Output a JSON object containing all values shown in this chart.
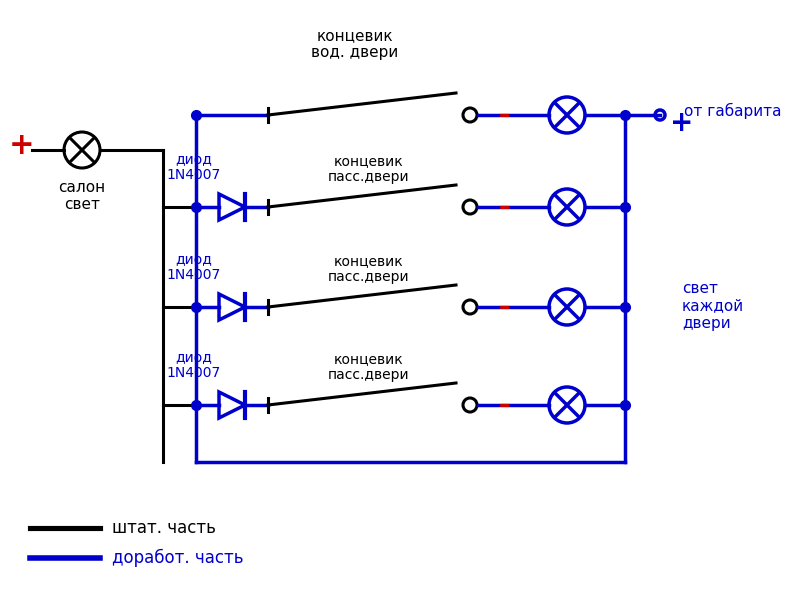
{
  "bg_color": "#ffffff",
  "black": "#000000",
  "blue": "#0000cc",
  "red": "#cc0000",
  "figsize": [
    7.98,
    6.06
  ],
  "dpi": 100,
  "legend_black_label": "штат. часть",
  "legend_blue_label": "доработ. часть",
  "label_salon": "салон\nсвет",
  "label_ot_gabarity": "от габарита",
  "label_svet_kazhdoy": "свет\nкаждой\nдвери",
  "label_koncevic_vod": "концевик\nвод. двери",
  "label_koncevic_pass": "концевик\nпасс.двери",
  "label_diod": "диод\n1N4007"
}
